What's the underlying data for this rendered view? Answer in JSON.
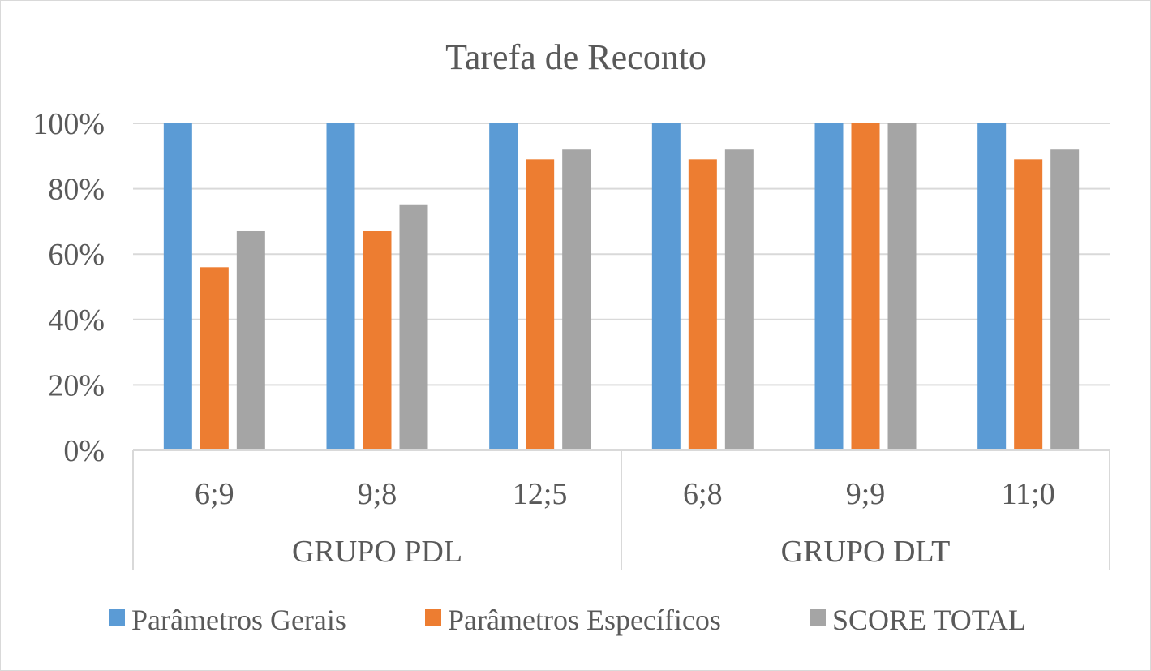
{
  "chart_data": {
    "type": "bar",
    "title": "Tarefa de Reconto",
    "xlabel": "",
    "ylabel": "",
    "ylim": [
      0,
      100
    ],
    "yticks": [
      0,
      20,
      40,
      60,
      80,
      100
    ],
    "ytick_suffix": "%",
    "grid": true,
    "legend_position": "bottom",
    "groups": [
      {
        "label": "GRUPO PDL",
        "categories": [
          "6;9",
          "9;8",
          "12;5"
        ]
      },
      {
        "label": "GRUPO DLT",
        "categories": [
          "6;8",
          "9;9",
          "11;0"
        ]
      }
    ],
    "categories": [
      "6;9",
      "9;8",
      "12;5",
      "6;8",
      "9;9",
      "11;0"
    ],
    "series": [
      {
        "name": "Parâmetros Gerais",
        "color": "#5b9bd5",
        "values": [
          100,
          100,
          100,
          100,
          100,
          100
        ]
      },
      {
        "name": "Parâmetros Específicos",
        "color": "#ed7d31",
        "values": [
          56,
          67,
          89,
          89,
          100,
          89
        ]
      },
      {
        "name": "SCORE TOTAL",
        "color": "#a5a5a5",
        "values": [
          67,
          75,
          92,
          92,
          100,
          92
        ]
      }
    ]
  }
}
